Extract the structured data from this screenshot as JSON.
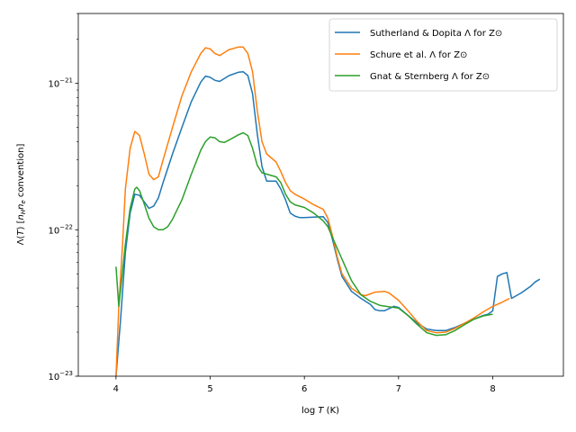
{
  "chart_data": {
    "type": "line",
    "xlabel": "log T (K)",
    "ylabel": "Λ(T) [n_H n_e convention]",
    "xlim": [
      3.6,
      8.75
    ],
    "ylim": [
      1e-23,
      3e-21
    ],
    "yscale": "log",
    "grid": false,
    "legend_position": "top-right",
    "x_ticks": [
      4,
      5,
      6,
      7,
      8
    ],
    "y_ticks": [
      1e-23,
      1e-22,
      1e-21
    ],
    "series": [
      {
        "name": "Sutherland & Dopita Λ for Z⊙",
        "color": "#1f77b4",
        "points": [
          [
            4.0,
            1e-23
          ],
          [
            4.05,
            2.5e-23
          ],
          [
            4.1,
            7e-23
          ],
          [
            4.15,
            1.3e-22
          ],
          [
            4.2,
            1.75e-22
          ],
          [
            4.25,
            1.72e-22
          ],
          [
            4.3,
            1.55e-22
          ],
          [
            4.35,
            1.4e-22
          ],
          [
            4.4,
            1.45e-22
          ],
          [
            4.45,
            1.65e-22
          ],
          [
            4.5,
            2.1e-22
          ],
          [
            4.6,
            3.3e-22
          ],
          [
            4.7,
            5e-22
          ],
          [
            4.8,
            7.5e-22
          ],
          [
            4.9,
            1.02e-21
          ],
          [
            4.95,
            1.12e-21
          ],
          [
            5.0,
            1.1e-21
          ],
          [
            5.05,
            1.05e-21
          ],
          [
            5.1,
            1.03e-21
          ],
          [
            5.2,
            1.13e-21
          ],
          [
            5.3,
            1.19e-21
          ],
          [
            5.35,
            1.2e-21
          ],
          [
            5.4,
            1.13e-21
          ],
          [
            5.45,
            8.5e-22
          ],
          [
            5.5,
            4.5e-22
          ],
          [
            5.55,
            2.7e-22
          ],
          [
            5.6,
            2.15e-22
          ],
          [
            5.65,
            2.15e-22
          ],
          [
            5.7,
            2.15e-22
          ],
          [
            5.75,
            1.9e-22
          ],
          [
            5.8,
            1.6e-22
          ],
          [
            5.85,
            1.3e-22
          ],
          [
            5.9,
            1.24e-22
          ],
          [
            5.95,
            1.21e-22
          ],
          [
            6.0,
            1.21e-22
          ],
          [
            6.1,
            1.22e-22
          ],
          [
            6.2,
            1.23e-22
          ],
          [
            6.25,
            1.12e-22
          ],
          [
            6.3,
            8.5e-23
          ],
          [
            6.35,
            6.3e-23
          ],
          [
            6.4,
            4.8e-23
          ],
          [
            6.5,
            3.8e-23
          ],
          [
            6.6,
            3.4e-23
          ],
          [
            6.7,
            3.1e-23
          ],
          [
            6.75,
            2.85e-23
          ],
          [
            6.8,
            2.8e-23
          ],
          [
            6.85,
            2.8e-23
          ],
          [
            6.95,
            3e-23
          ],
          [
            7.0,
            2.95e-23
          ],
          [
            7.1,
            2.6e-23
          ],
          [
            7.2,
            2.3e-23
          ],
          [
            7.3,
            2.1e-23
          ],
          [
            7.4,
            2.05e-23
          ],
          [
            7.5,
            2.05e-23
          ],
          [
            7.6,
            2.15e-23
          ],
          [
            7.7,
            2.3e-23
          ],
          [
            7.8,
            2.45e-23
          ],
          [
            7.9,
            2.6e-23
          ],
          [
            7.95,
            2.65e-23
          ],
          [
            8.0,
            2.8e-23
          ],
          [
            8.05,
            4.8e-23
          ],
          [
            8.1,
            5e-23
          ],
          [
            8.15,
            5.1e-23
          ],
          [
            8.2,
            3.4e-23
          ],
          [
            8.3,
            3.7e-23
          ],
          [
            8.4,
            4.1e-23
          ],
          [
            8.45,
            4.4e-23
          ],
          [
            8.5,
            4.6e-23
          ]
        ]
      },
      {
        "name": "Schure et al. Λ for Z⊙",
        "color": "#ff7f0e",
        "points": [
          [
            4.0,
            1e-23
          ],
          [
            4.03,
            3e-23
          ],
          [
            4.07,
            8e-23
          ],
          [
            4.1,
            1.9e-22
          ],
          [
            4.15,
            3.6e-22
          ],
          [
            4.2,
            4.7e-22
          ],
          [
            4.25,
            4.4e-22
          ],
          [
            4.3,
            3.3e-22
          ],
          [
            4.35,
            2.4e-22
          ],
          [
            4.4,
            2.2e-22
          ],
          [
            4.45,
            2.3e-22
          ],
          [
            4.5,
            3e-22
          ],
          [
            4.6,
            5e-22
          ],
          [
            4.7,
            8.2e-22
          ],
          [
            4.8,
            1.2e-21
          ],
          [
            4.9,
            1.6e-21
          ],
          [
            4.95,
            1.75e-21
          ],
          [
            5.0,
            1.72e-21
          ],
          [
            5.05,
            1.6e-21
          ],
          [
            5.1,
            1.55e-21
          ],
          [
            5.2,
            1.7e-21
          ],
          [
            5.3,
            1.77e-21
          ],
          [
            5.35,
            1.77e-21
          ],
          [
            5.4,
            1.6e-21
          ],
          [
            5.45,
            1.2e-21
          ],
          [
            5.5,
            6.5e-22
          ],
          [
            5.55,
            4e-22
          ],
          [
            5.6,
            3.3e-22
          ],
          [
            5.7,
            2.9e-22
          ],
          [
            5.75,
            2.5e-22
          ],
          [
            5.8,
            2.1e-22
          ],
          [
            5.85,
            1.85e-22
          ],
          [
            5.9,
            1.75e-22
          ],
          [
            6.0,
            1.62e-22
          ],
          [
            6.1,
            1.48e-22
          ],
          [
            6.2,
            1.38e-22
          ],
          [
            6.25,
            1.2e-22
          ],
          [
            6.3,
            9e-23
          ],
          [
            6.35,
            6.5e-23
          ],
          [
            6.4,
            5e-23
          ],
          [
            6.5,
            4e-23
          ],
          [
            6.6,
            3.6e-23
          ],
          [
            6.65,
            3.55e-23
          ],
          [
            6.75,
            3.75e-23
          ],
          [
            6.85,
            3.8e-23
          ],
          [
            6.9,
            3.7e-23
          ],
          [
            7.0,
            3.3e-23
          ],
          [
            7.1,
            2.8e-23
          ],
          [
            7.2,
            2.35e-23
          ],
          [
            7.3,
            2.05e-23
          ],
          [
            7.4,
            1.98e-23
          ],
          [
            7.5,
            2e-23
          ],
          [
            7.6,
            2.12e-23
          ],
          [
            7.7,
            2.3e-23
          ],
          [
            7.8,
            2.5e-23
          ],
          [
            7.9,
            2.75e-23
          ],
          [
            8.0,
            3e-23
          ],
          [
            8.1,
            3.2e-23
          ],
          [
            8.18,
            3.4e-23
          ]
        ]
      },
      {
        "name": "Gnat & Sternberg Λ for Z⊙",
        "color": "#2ca02c",
        "points": [
          [
            4.0,
            5.6e-23
          ],
          [
            4.03,
            3e-23
          ],
          [
            4.06,
            4.5e-23
          ],
          [
            4.1,
            8e-23
          ],
          [
            4.15,
            1.4e-22
          ],
          [
            4.2,
            1.9e-22
          ],
          [
            4.22,
            1.95e-22
          ],
          [
            4.25,
            1.85e-22
          ],
          [
            4.3,
            1.5e-22
          ],
          [
            4.35,
            1.2e-22
          ],
          [
            4.4,
            1.05e-22
          ],
          [
            4.45,
            1e-22
          ],
          [
            4.5,
            1e-22
          ],
          [
            4.55,
            1.05e-22
          ],
          [
            4.6,
            1.18e-22
          ],
          [
            4.7,
            1.6e-22
          ],
          [
            4.8,
            2.4e-22
          ],
          [
            4.9,
            3.5e-22
          ],
          [
            4.95,
            4e-22
          ],
          [
            5.0,
            4.3e-22
          ],
          [
            5.05,
            4.25e-22
          ],
          [
            5.1,
            4e-22
          ],
          [
            5.15,
            3.95e-22
          ],
          [
            5.2,
            4.1e-22
          ],
          [
            5.3,
            4.45e-22
          ],
          [
            5.35,
            4.6e-22
          ],
          [
            5.4,
            4.4e-22
          ],
          [
            5.45,
            3.6e-22
          ],
          [
            5.5,
            2.75e-22
          ],
          [
            5.55,
            2.45e-22
          ],
          [
            5.6,
            2.4e-22
          ],
          [
            5.7,
            2.3e-22
          ],
          [
            5.75,
            2.1e-22
          ],
          [
            5.8,
            1.75e-22
          ],
          [
            5.85,
            1.55e-22
          ],
          [
            5.9,
            1.48e-22
          ],
          [
            6.0,
            1.42e-22
          ],
          [
            6.1,
            1.3e-22
          ],
          [
            6.2,
            1.15e-22
          ],
          [
            6.25,
            1.05e-22
          ],
          [
            6.3,
            8.8e-23
          ],
          [
            6.4,
            6.3e-23
          ],
          [
            6.5,
            4.5e-23
          ],
          [
            6.6,
            3.6e-23
          ],
          [
            6.7,
            3.25e-23
          ],
          [
            6.8,
            3.05e-23
          ],
          [
            6.9,
            2.98e-23
          ],
          [
            7.0,
            2.92e-23
          ],
          [
            7.1,
            2.6e-23
          ],
          [
            7.2,
            2.25e-23
          ],
          [
            7.3,
            1.98e-23
          ],
          [
            7.4,
            1.9e-23
          ],
          [
            7.5,
            1.92e-23
          ],
          [
            7.6,
            2.05e-23
          ],
          [
            7.7,
            2.25e-23
          ],
          [
            7.8,
            2.45e-23
          ],
          [
            7.9,
            2.58e-23
          ],
          [
            8.0,
            2.65e-23
          ]
        ]
      }
    ]
  }
}
